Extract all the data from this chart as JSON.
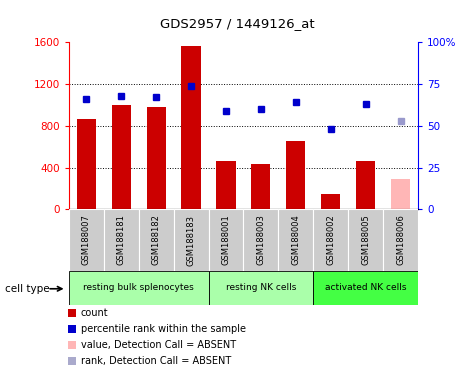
{
  "title": "GDS2957 / 1449126_at",
  "samples": [
    "GSM188007",
    "GSM188181",
    "GSM188182",
    "GSM188183",
    "GSM188001",
    "GSM188003",
    "GSM188004",
    "GSM188002",
    "GSM188005",
    "GSM188006"
  ],
  "bar_values": [
    860,
    1000,
    975,
    1560,
    460,
    430,
    650,
    145,
    460,
    290
  ],
  "bar_colors": [
    "#cc0000",
    "#cc0000",
    "#cc0000",
    "#cc0000",
    "#cc0000",
    "#cc0000",
    "#cc0000",
    "#cc0000",
    "#cc0000",
    "#ffb6b6"
  ],
  "percentile_pct": [
    66,
    68,
    67,
    74,
    59,
    60,
    64,
    48,
    63,
    53
  ],
  "percentile_colors": [
    "#0000cc",
    "#0000cc",
    "#0000cc",
    "#0000cc",
    "#0000cc",
    "#0000cc",
    "#0000cc",
    "#0000cc",
    "#0000cc",
    "#9999cc"
  ],
  "ylim_left": [
    0,
    1600
  ],
  "ylim_right": [
    0,
    100
  ],
  "yticks_left": [
    0,
    400,
    800,
    1200,
    1600
  ],
  "yticks_right": [
    0,
    25,
    50,
    75,
    100
  ],
  "groups": [
    {
      "label": "resting bulk splenocytes",
      "start": 0,
      "end": 3,
      "color": "#aaffaa"
    },
    {
      "label": "resting NK cells",
      "start": 4,
      "end": 6,
      "color": "#aaffaa"
    },
    {
      "label": "activated NK cells",
      "start": 7,
      "end": 9,
      "color": "#44ff44"
    }
  ],
  "cell_type_label": "cell type",
  "legend_items": [
    {
      "label": "count",
      "color": "#cc0000"
    },
    {
      "label": "percentile rank within the sample",
      "color": "#0000cc"
    },
    {
      "label": "value, Detection Call = ABSENT",
      "color": "#ffb6b6"
    },
    {
      "label": "rank, Detection Call = ABSENT",
      "color": "#aaaacc"
    }
  ]
}
